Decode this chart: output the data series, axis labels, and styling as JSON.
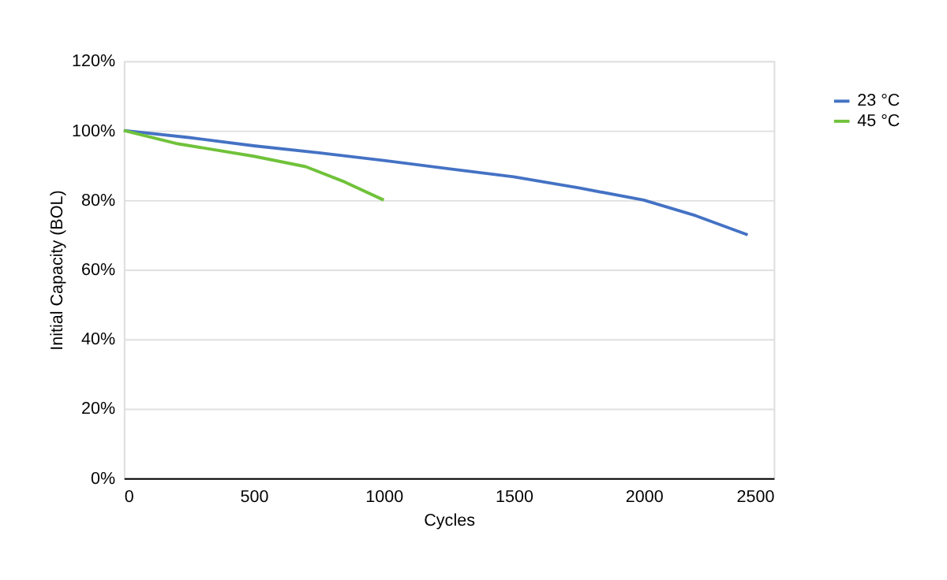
{
  "chart_data": {
    "type": "line",
    "xlabel": "Cycles",
    "ylabel": "Initial Capacity (BOL)",
    "series": [
      {
        "name": "23 °C",
        "color": "#4472c4",
        "x": [
          0,
          250,
          500,
          750,
          1000,
          1250,
          1500,
          1750,
          2000,
          2200,
          2400
        ],
        "values": [
          100,
          98,
          95.6,
          93.6,
          91.4,
          89,
          86.7,
          83.5,
          80,
          75.5,
          70
        ]
      },
      {
        "name": "45 °C",
        "color": "#70c23a",
        "x": [
          0,
          200,
          500,
          700,
          850,
          1000
        ],
        "values": [
          100,
          96.3,
          92.6,
          89.6,
          85.2,
          80
        ]
      }
    ],
    "xlim": [
      0,
      2500
    ],
    "xticks": [
      0,
      500,
      1000,
      1500,
      2000,
      2500
    ],
    "ylim": [
      0,
      120
    ],
    "yticks": [
      {
        "value": 0,
        "label": "0%"
      },
      {
        "value": 20,
        "label": "20%"
      },
      {
        "value": 40,
        "label": "40%"
      },
      {
        "value": 60,
        "label": "60%"
      },
      {
        "value": 80,
        "label": "80%"
      },
      {
        "value": 100,
        "label": "100%"
      },
      {
        "value": 120,
        "label": "120%"
      }
    ],
    "grid": "y",
    "legend": "right",
    "marker": "none",
    "line_style": "solid"
  }
}
